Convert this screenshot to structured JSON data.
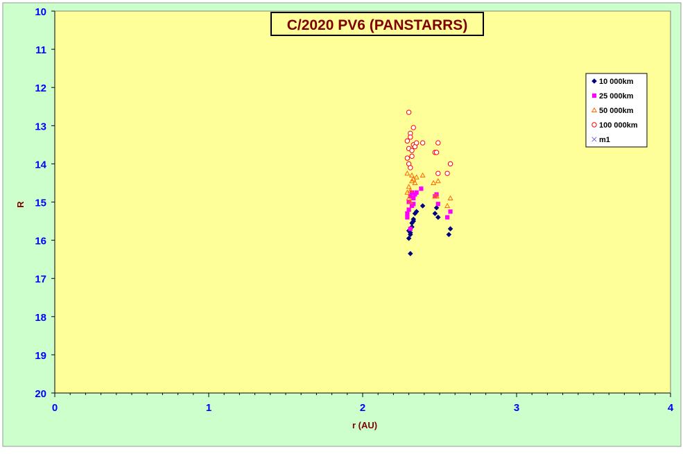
{
  "chart_data": {
    "type": "scatter",
    "title": "C/2020 PV6 (PANSTARRS)",
    "xlabel": "r (AU)",
    "ylabel": "R",
    "xlim": [
      0,
      4
    ],
    "ylim": [
      10,
      20
    ],
    "y_inverted": true,
    "x_ticks": [
      "0",
      "1",
      "2",
      "3",
      "4"
    ],
    "y_ticks": [
      "10",
      "11",
      "12",
      "13",
      "14",
      "15",
      "16",
      "17",
      "18",
      "19",
      "20"
    ],
    "grid": false,
    "legend_position": "top-right",
    "colors": {
      "background": "#ccffcc",
      "plot_area": "#ffff99",
      "tick_labels": "#0000ff",
      "axis_labels": "#800000",
      "title_text": "#800000"
    },
    "series": [
      {
        "name": "10 000km",
        "marker": "diamond",
        "color": "#000080",
        "points": [
          [
            2.3,
            15.75
          ],
          [
            2.3,
            15.95
          ],
          [
            2.31,
            15.8
          ],
          [
            2.31,
            15.85
          ],
          [
            2.31,
            16.35
          ],
          [
            2.32,
            15.65
          ],
          [
            2.32,
            15.55
          ],
          [
            2.33,
            15.5
          ],
          [
            2.33,
            15.45
          ],
          [
            2.34,
            15.3
          ],
          [
            2.35,
            15.25
          ],
          [
            2.39,
            15.1
          ],
          [
            2.47,
            15.3
          ],
          [
            2.48,
            15.15
          ],
          [
            2.49,
            15.4
          ],
          [
            2.56,
            15.85
          ],
          [
            2.57,
            15.7
          ]
        ]
      },
      {
        "name": "25 000km",
        "marker": "square",
        "color": "#ff00ff",
        "points": [
          [
            2.29,
            15.4
          ],
          [
            2.29,
            15.3
          ],
          [
            2.3,
            15.2
          ],
          [
            2.3,
            15.0
          ],
          [
            2.31,
            14.85
          ],
          [
            2.31,
            15.7
          ],
          [
            2.32,
            14.75
          ],
          [
            2.32,
            15.1
          ],
          [
            2.33,
            14.9
          ],
          [
            2.33,
            15.05
          ],
          [
            2.34,
            14.8
          ],
          [
            2.35,
            14.75
          ],
          [
            2.38,
            14.65
          ],
          [
            2.47,
            14.85
          ],
          [
            2.48,
            14.8
          ],
          [
            2.49,
            15.05
          ],
          [
            2.55,
            15.4
          ],
          [
            2.57,
            15.25
          ]
        ]
      },
      {
        "name": "50 000km",
        "marker": "triangle",
        "color": "#ff6600",
        "points": [
          [
            2.29,
            14.75
          ],
          [
            2.29,
            14.25
          ],
          [
            2.3,
            14.9
          ],
          [
            2.3,
            14.6
          ],
          [
            2.31,
            14.7
          ],
          [
            2.31,
            15.0
          ],
          [
            2.32,
            14.45
          ],
          [
            2.32,
            14.3
          ],
          [
            2.33,
            14.4
          ],
          [
            2.34,
            14.5
          ],
          [
            2.35,
            14.35
          ],
          [
            2.39,
            14.3
          ],
          [
            2.46,
            14.5
          ],
          [
            2.47,
            14.85
          ],
          [
            2.48,
            14.85
          ],
          [
            2.49,
            14.45
          ],
          [
            2.55,
            15.1
          ],
          [
            2.57,
            14.9
          ]
        ]
      },
      {
        "name": "100 000km",
        "marker": "circle",
        "color": "#ff0000",
        "points": [
          [
            2.29,
            13.4
          ],
          [
            2.29,
            13.85
          ],
          [
            2.3,
            12.65
          ],
          [
            2.3,
            14.0
          ],
          [
            2.3,
            13.6
          ],
          [
            2.31,
            13.2
          ],
          [
            2.31,
            13.3
          ],
          [
            2.31,
            14.1
          ],
          [
            2.32,
            13.8
          ],
          [
            2.32,
            13.65
          ],
          [
            2.33,
            13.05
          ],
          [
            2.33,
            13.5
          ],
          [
            2.34,
            13.55
          ],
          [
            2.35,
            13.45
          ],
          [
            2.39,
            13.45
          ],
          [
            2.47,
            13.7
          ],
          [
            2.48,
            13.7
          ],
          [
            2.49,
            13.45
          ],
          [
            2.49,
            14.25
          ],
          [
            2.55,
            14.25
          ],
          [
            2.57,
            14.0
          ]
        ]
      },
      {
        "name": "m1",
        "marker": "x",
        "color": "#6666cc",
        "points": []
      }
    ]
  }
}
